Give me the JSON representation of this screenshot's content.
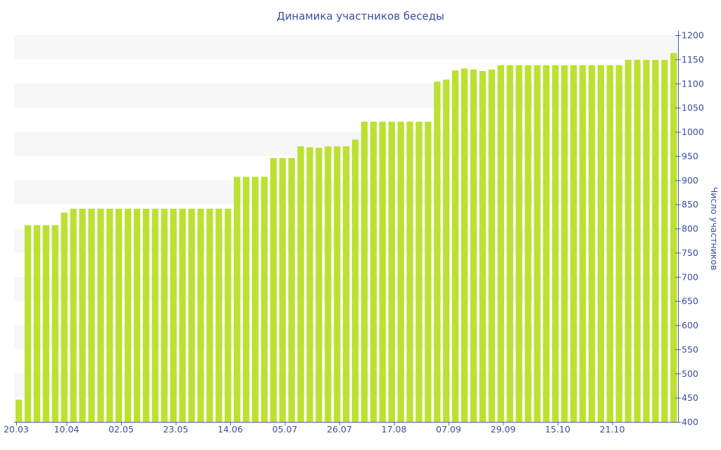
{
  "chart_data": {
    "type": "bar",
    "title": "Динамика участников беседы",
    "ylabel": "Число участников",
    "xlabel": "",
    "ylim": [
      400,
      1200
    ],
    "y_ticks": [
      400,
      450,
      500,
      550,
      600,
      650,
      700,
      750,
      800,
      850,
      900,
      950,
      1000,
      1050,
      1100,
      1150,
      1200
    ],
    "y_axis_side": "right",
    "grid": "alternating horizontal bands",
    "x_tick_labels": [
      "20.03",
      "10.04",
      "02.05",
      "23.05",
      "14.06",
      "05.07",
      "26.07",
      "17.08",
      "07.09",
      "29.09",
      "15.10",
      "21.10"
    ],
    "x_tick_bar_index": [
      0,
      6,
      12,
      18,
      24,
      30,
      36,
      42,
      48,
      54,
      60,
      66
    ],
    "values": [
      446,
      807,
      807,
      807,
      807,
      833,
      841,
      841,
      841,
      841,
      841,
      841,
      841,
      841,
      841,
      841,
      841,
      841,
      841,
      841,
      841,
      841,
      841,
      841,
      907,
      907,
      907,
      907,
      946,
      946,
      946,
      970,
      968,
      967,
      970,
      970,
      970,
      984,
      1021,
      1021,
      1021,
      1021,
      1021,
      1021,
      1021,
      1021,
      1104,
      1108,
      1127,
      1131,
      1129,
      1126,
      1129,
      1138,
      1138,
      1138,
      1138,
      1138,
      1138,
      1138,
      1138,
      1138,
      1138,
      1138,
      1138,
      1138,
      1138,
      1149,
      1149,
      1149,
      1149,
      1149,
      1163
    ],
    "colors": {
      "bar": "#bce133",
      "band": "#f7f7f7",
      "axis": "#4a5ea8",
      "text": "#3a4e9a"
    }
  }
}
